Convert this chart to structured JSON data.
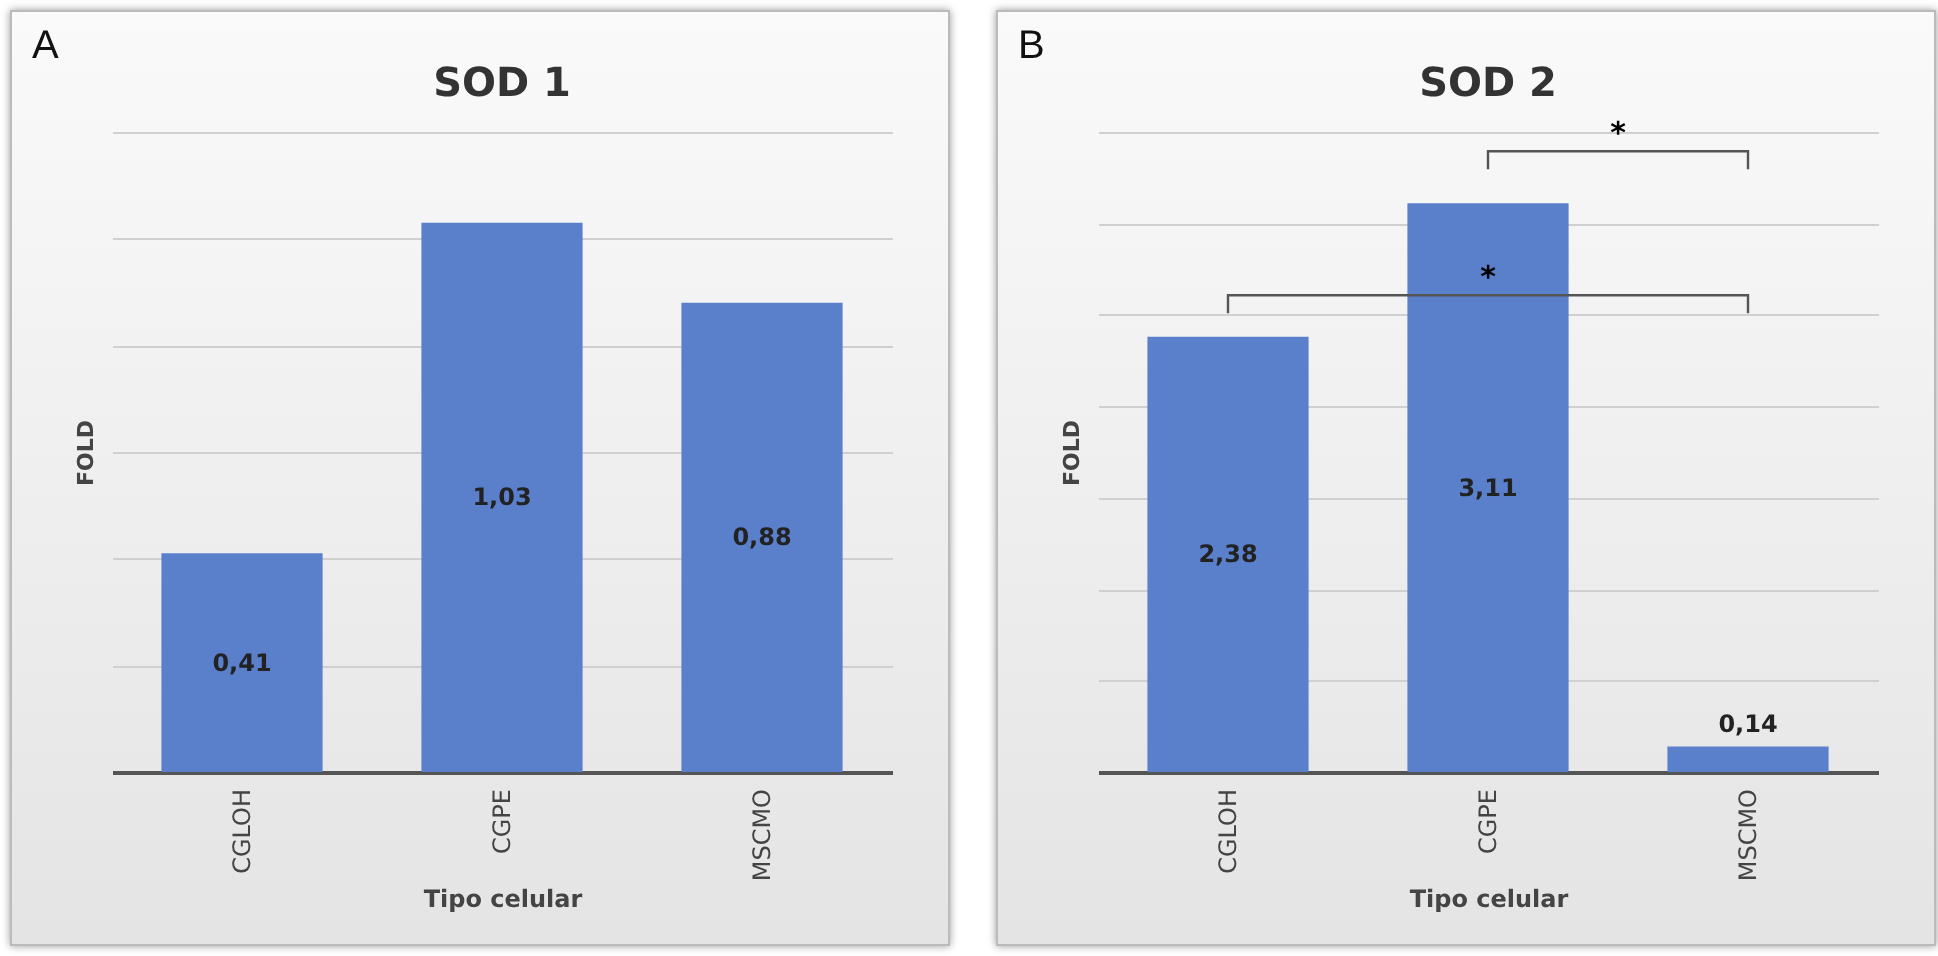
{
  "chart_data": [
    {
      "type": "bar",
      "title": "SOD 1",
      "xlabel": "Tipo celular",
      "ylabel": "FOLD",
      "categories": [
        "CGLOH",
        "CGPE",
        "MSCMO"
      ],
      "values": [
        0.41,
        1.03,
        0.88
      ],
      "color": "#5a7fcb",
      "data_labels": true,
      "value_labels": [
        "0,41",
        "1,03",
        "0,88"
      ],
      "ylim": [
        0,
        1.2
      ],
      "yticks": [
        {
          "value": 0,
          "label": null
        },
        {
          "value": 0.2,
          "label": null
        },
        {
          "value": 0.4,
          "label": null
        },
        {
          "value": 0.6,
          "label": null
        },
        {
          "value": 0.8,
          "label": null
        },
        {
          "value": 1,
          "label": null
        },
        {
          "value": 1.2,
          "label": null
        }
      ],
      "grid": "y",
      "tick_labels": "x",
      "annotations": [
        "A"
      ]
    },
    {
      "type": "bar",
      "title": "SOD 2",
      "xlabel": "Tipo celular",
      "ylabel": "FOLD",
      "categories": [
        "CGLOH",
        "CGPE",
        "MSCMO"
      ],
      "values": [
        2.38,
        3.11,
        0.14
      ],
      "color": "#5a7fcb",
      "data_labels": true,
      "value_labels": [
        "2,38",
        "3,11",
        "0,14"
      ],
      "ylim": [
        0,
        3.5
      ],
      "yticks": [
        {
          "value": 0,
          "label": null
        },
        {
          "value": 0.5,
          "label": null
        },
        {
          "value": 1,
          "label": null
        },
        {
          "value": 1.5,
          "label": null
        },
        {
          "value": 2,
          "label": null
        },
        {
          "value": 2.5,
          "label": null
        },
        {
          "value": 3,
          "label": null
        },
        {
          "value": 3.5,
          "label": null
        }
      ],
      "grid": "y",
      "tick_labels": "x",
      "annotations": [
        "B",
        "*",
        "*"
      ]
    }
  ]
}
